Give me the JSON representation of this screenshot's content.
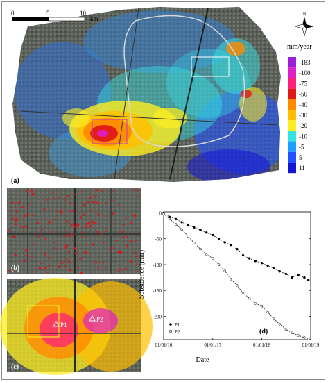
{
  "panel_a": {
    "label": "(a)",
    "scale_bar": {
      "ticks": [
        "0",
        "5",
        "10"
      ],
      "unit": "km"
    },
    "north_label": "N",
    "legend": {
      "title": "mm/year",
      "entries": [
        {
          "label": "-183",
          "color": "#9b1fd6"
        },
        {
          "label": "-100",
          "color": "#e01ec7"
        },
        {
          "label": "-75",
          "color": "#ff1f7a"
        },
        {
          "label": "-50",
          "color": "#e01818"
        },
        {
          "label": "-40",
          "color": "#ff8a00"
        },
        {
          "label": "-30",
          "color": "#ffbf00"
        },
        {
          "label": "-20",
          "color": "#ffee1f"
        },
        {
          "label": "-10",
          "color": "#35e3e3"
        },
        {
          "label": "-5",
          "color": "#1f9cff"
        },
        {
          "label": "5",
          "color": "#2353ff"
        },
        {
          "label": "11",
          "color": "#1414d6"
        }
      ]
    }
  },
  "panel_b": {
    "label": "(b)"
  },
  "panel_c": {
    "label": "(c)",
    "points": [
      "P1",
      "P2"
    ]
  },
  "chart_data": {
    "type": "scatter",
    "label": "(d)",
    "xlabel": "Date",
    "ylabel": "Subsidence (mm)",
    "x_ticks": [
      "01/01/16",
      "01/01/17",
      "01/01/18",
      "01/01/19"
    ],
    "y_ticks": [
      0,
      -50,
      -100,
      -150,
      -200
    ],
    "xlim": [
      "2016-01-01",
      "2019-01-01"
    ],
    "ylim": [
      -245,
      2
    ],
    "legend_placement": "bottom-left",
    "series": [
      {
        "name": "P1",
        "marker": "filled",
        "dates": [
          "2016-01-01",
          "2016-02-15",
          "2016-04-01",
          "2016-05-15",
          "2016-07-01",
          "2016-08-15",
          "2016-10-01",
          "2016-11-15",
          "2017-01-01",
          "2017-02-15",
          "2017-04-01",
          "2017-05-15",
          "2017-07-01",
          "2017-08-15",
          "2017-10-01",
          "2017-11-15",
          "2018-01-01",
          "2018-02-15",
          "2018-04-01",
          "2018-05-15",
          "2018-07-01",
          "2018-08-15",
          "2018-10-01",
          "2018-11-15",
          "2018-12-15"
        ],
        "values": [
          0,
          -8,
          -12,
          -18,
          -23,
          -28,
          -33,
          -38,
          -43,
          -50,
          -57,
          -62,
          -70,
          -82,
          -88,
          -93,
          -97,
          -102,
          -107,
          -113,
          -118,
          -125,
          -120,
          -125,
          -130
        ]
      },
      {
        "name": "P2",
        "marker": "open",
        "dates": [
          "2016-01-01",
          "2016-02-15",
          "2016-04-01",
          "2016-05-15",
          "2016-07-01",
          "2016-08-15",
          "2016-10-01",
          "2016-11-15",
          "2017-01-01",
          "2017-02-15",
          "2017-04-01",
          "2017-05-15",
          "2017-07-01",
          "2017-08-15",
          "2017-10-01",
          "2017-11-15",
          "2018-01-01",
          "2018-02-15",
          "2018-04-01",
          "2018-05-15",
          "2018-07-01",
          "2018-08-15",
          "2018-10-01",
          "2018-11-15",
          "2018-12-15"
        ],
        "values": [
          -2,
          -12,
          -22,
          -32,
          -45,
          -58,
          -70,
          -80,
          -88,
          -100,
          -112,
          -128,
          -140,
          -155,
          -165,
          -175,
          -180,
          -192,
          -205,
          -215,
          -225,
          -232,
          -237,
          -241,
          -244
        ]
      }
    ]
  }
}
